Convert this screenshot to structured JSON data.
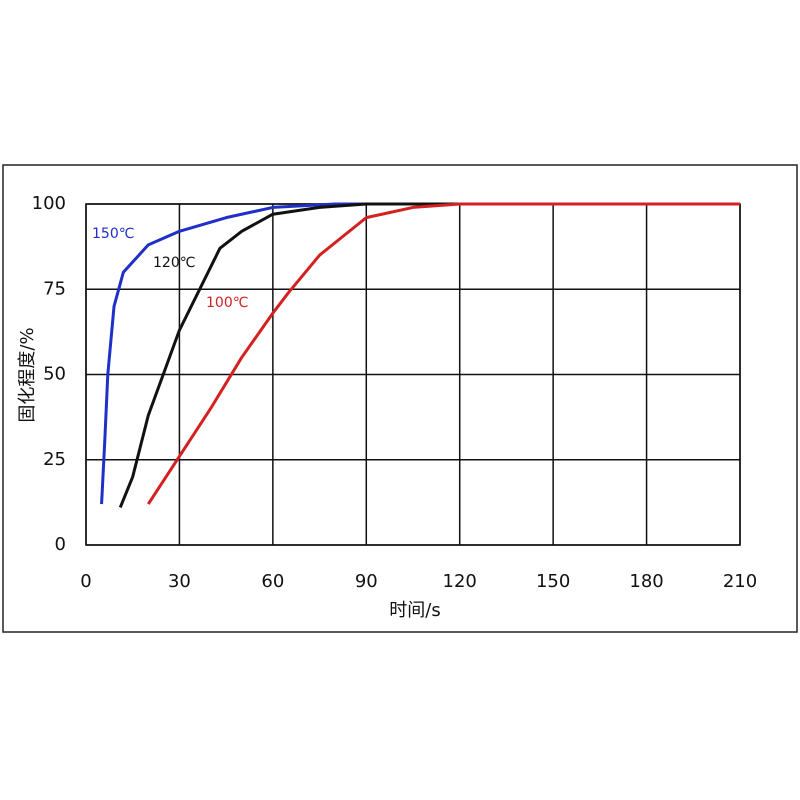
{
  "chart_data": {
    "type": "line",
    "xlabel": "时间/s",
    "ylabel": "固化程度/%",
    "xlim": [
      0,
      210
    ],
    "xticks": [
      0,
      30,
      60,
      90,
      120,
      150,
      180,
      210
    ],
    "ylim": [
      0,
      100
    ],
    "yticks": [
      0,
      25,
      50,
      75,
      100
    ],
    "grid": true,
    "series": [
      {
        "name": "150℃",
        "color": "#1f2fc8",
        "x": [
          5,
          6,
          7,
          9,
          12,
          20,
          30,
          45,
          60,
          80,
          145
        ],
        "values": [
          12,
          30,
          50,
          70,
          80,
          88,
          92,
          96,
          99,
          100,
          100
        ]
      },
      {
        "name": "120℃",
        "color": "#111111",
        "x": [
          11,
          15,
          20,
          30,
          43,
          50,
          60,
          75,
          90,
          127
        ],
        "values": [
          11,
          20,
          38,
          63,
          87,
          92,
          97,
          99,
          100,
          100
        ]
      },
      {
        "name": "100℃",
        "color": "#d42020",
        "x": [
          20,
          30,
          40,
          50,
          60,
          65,
          75,
          90,
          105,
          120,
          210
        ],
        "values": [
          12,
          26,
          40,
          55,
          68,
          74,
          85,
          96,
          99,
          100,
          100
        ]
      }
    ]
  }
}
